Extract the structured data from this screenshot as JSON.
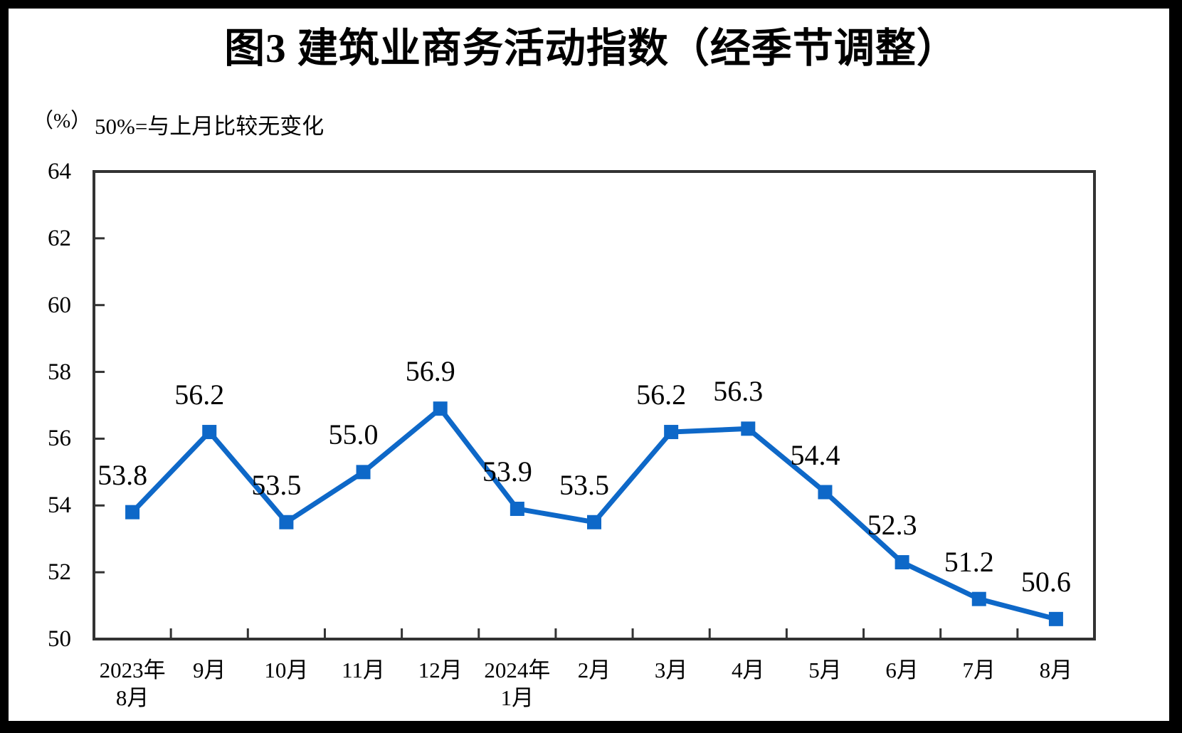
{
  "figure_number_note": "图3",
  "chart_data": {
    "type": "line",
    "title": "图3 建筑业商务活动指数（经季节调整）",
    "unit": "（%）",
    "subtitle": "50%=与上月比较无变化",
    "categories": [
      "2023年\n8月",
      "9月",
      "10月",
      "11月",
      "12月",
      "2024年\n1月",
      "2月",
      "3月",
      "4月",
      "5月",
      "6月",
      "7月",
      "8月"
    ],
    "series": [
      {
        "name": "建筑业商务活动指数",
        "values": [
          53.8,
          56.2,
          53.5,
          55.0,
          56.9,
          53.9,
          53.5,
          56.2,
          56.3,
          54.4,
          52.3,
          51.2,
          50.6
        ]
      }
    ],
    "data_label_texts": [
      "53.8",
      "56.2",
      "53.5",
      "55.0",
      "56.9",
      "53.9",
      "53.5",
      "56.2",
      "56.3",
      "54.4",
      "52.3",
      "51.2",
      "50.6"
    ],
    "ylim": [
      50,
      64
    ],
    "y_ticks": [
      50,
      52,
      54,
      56,
      58,
      60,
      62,
      64
    ],
    "xlabel": "",
    "ylabel": "（%）",
    "grid": false,
    "legend_position": "none",
    "data_labels": true,
    "line_color": "#0E68C8",
    "marker": "square",
    "axis_color": "#333333",
    "text_color": "#000000",
    "background_color": "#FFFFFF",
    "frame_color": "#000000"
  }
}
